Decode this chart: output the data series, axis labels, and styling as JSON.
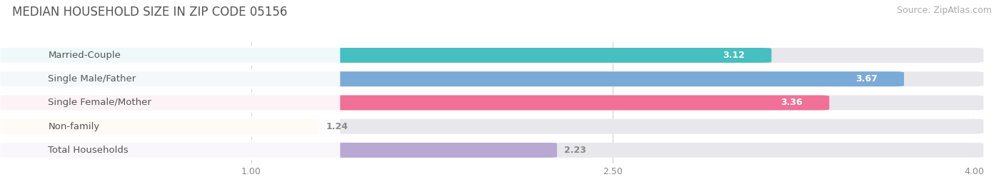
{
  "title": "MEDIAN HOUSEHOLD SIZE IN ZIP CODE 05156",
  "source": "Source: ZipAtlas.com",
  "categories": [
    "Married-Couple",
    "Single Male/Father",
    "Single Female/Mother",
    "Non-family",
    "Total Households"
  ],
  "values": [
    3.12,
    3.67,
    3.36,
    1.24,
    2.23
  ],
  "bar_colors": [
    "#45bfbf",
    "#7aaad8",
    "#f07098",
    "#f5c890",
    "#b8a8d4"
  ],
  "value_label_colors": [
    "white",
    "white",
    "white",
    "#888888",
    "#888888"
  ],
  "xlim": [
    0,
    4.3
  ],
  "xdata_max": 4.0,
  "xticks": [
    1.0,
    2.5,
    4.0
  ],
  "background_color": "#ffffff",
  "bar_bg_color": "#e8e8ec",
  "title_fontsize": 12,
  "source_fontsize": 9,
  "label_fontsize": 9.5,
  "value_fontsize": 9
}
